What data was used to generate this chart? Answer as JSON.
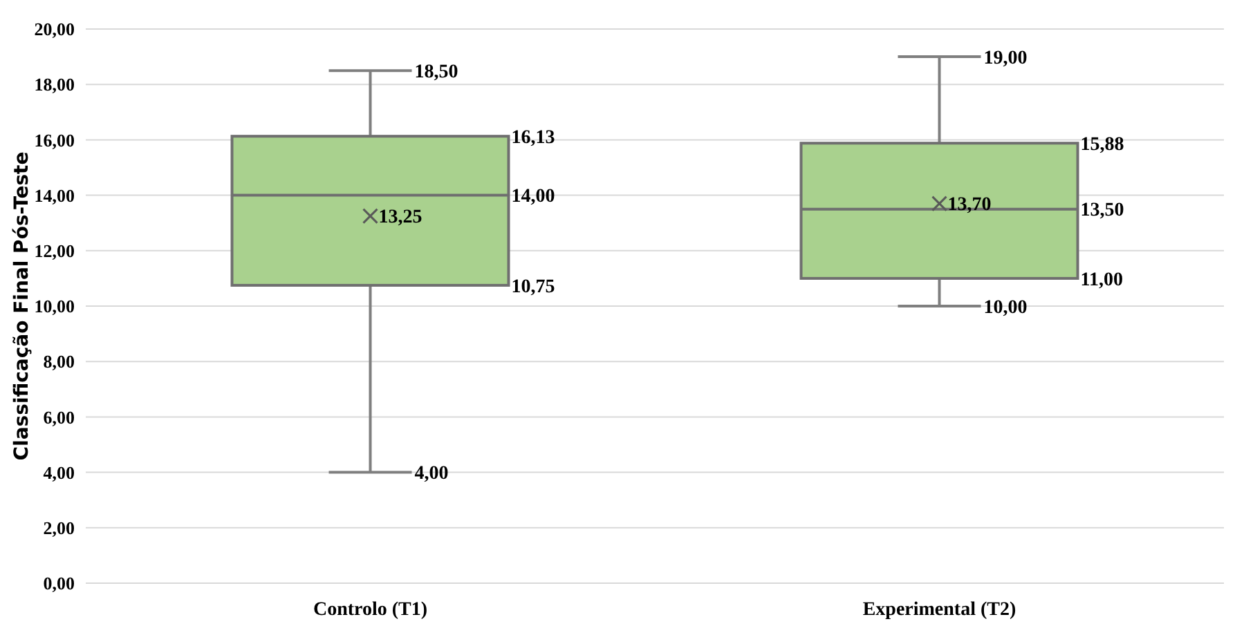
{
  "chart_data": {
    "type": "box",
    "ylabel": "Classificação Final  Pós-Teste",
    "categories": [
      "Controlo (T1)",
      "Experimental (T2)"
    ],
    "boxes": [
      {
        "low": 4,
        "q1": 10.75,
        "median": 14,
        "q3": 16.13,
        "high": 18.5,
        "mean": 13.25
      },
      {
        "low": 10,
        "q1": 11,
        "median": 13.5,
        "q3": 15.88,
        "high": 19,
        "mean": 13.7
      }
    ],
    "color": "#a9d18e",
    "ylim": [
      0,
      20
    ],
    "yticks": [
      {
        "value": 0,
        "label": "0,00"
      },
      {
        "value": 2,
        "label": "2,00"
      },
      {
        "value": 4,
        "label": "4,00"
      },
      {
        "value": 6,
        "label": "6,00"
      },
      {
        "value": 8,
        "label": "8,00"
      },
      {
        "value": 10,
        "label": "10,00"
      },
      {
        "value": 12,
        "label": "12,00"
      },
      {
        "value": 14,
        "label": "14,00"
      },
      {
        "value": 16,
        "label": "16,00"
      },
      {
        "value": 18,
        "label": "18,00"
      },
      {
        "value": 20,
        "label": "20,00"
      }
    ],
    "grid": "y",
    "marker": "cross",
    "annotations": [
      {
        "text": "18,50",
        "x": "Controlo (T1)",
        "y": 18.5
      },
      "16,13",
      "14,00",
      "13,25",
      "10,75",
      {
        "text": "4,00",
        "x": "Controlo (T1)",
        "y": 4
      },
      {
        "text": "19,00",
        "x": "Experimental (T2)",
        "y": 19
      },
      "15,88",
      "13,70",
      "13,50",
      "11,00",
      {
        "text": "10,00",
        "x": "Experimental (T2)",
        "y": 10
      }
    ]
  }
}
